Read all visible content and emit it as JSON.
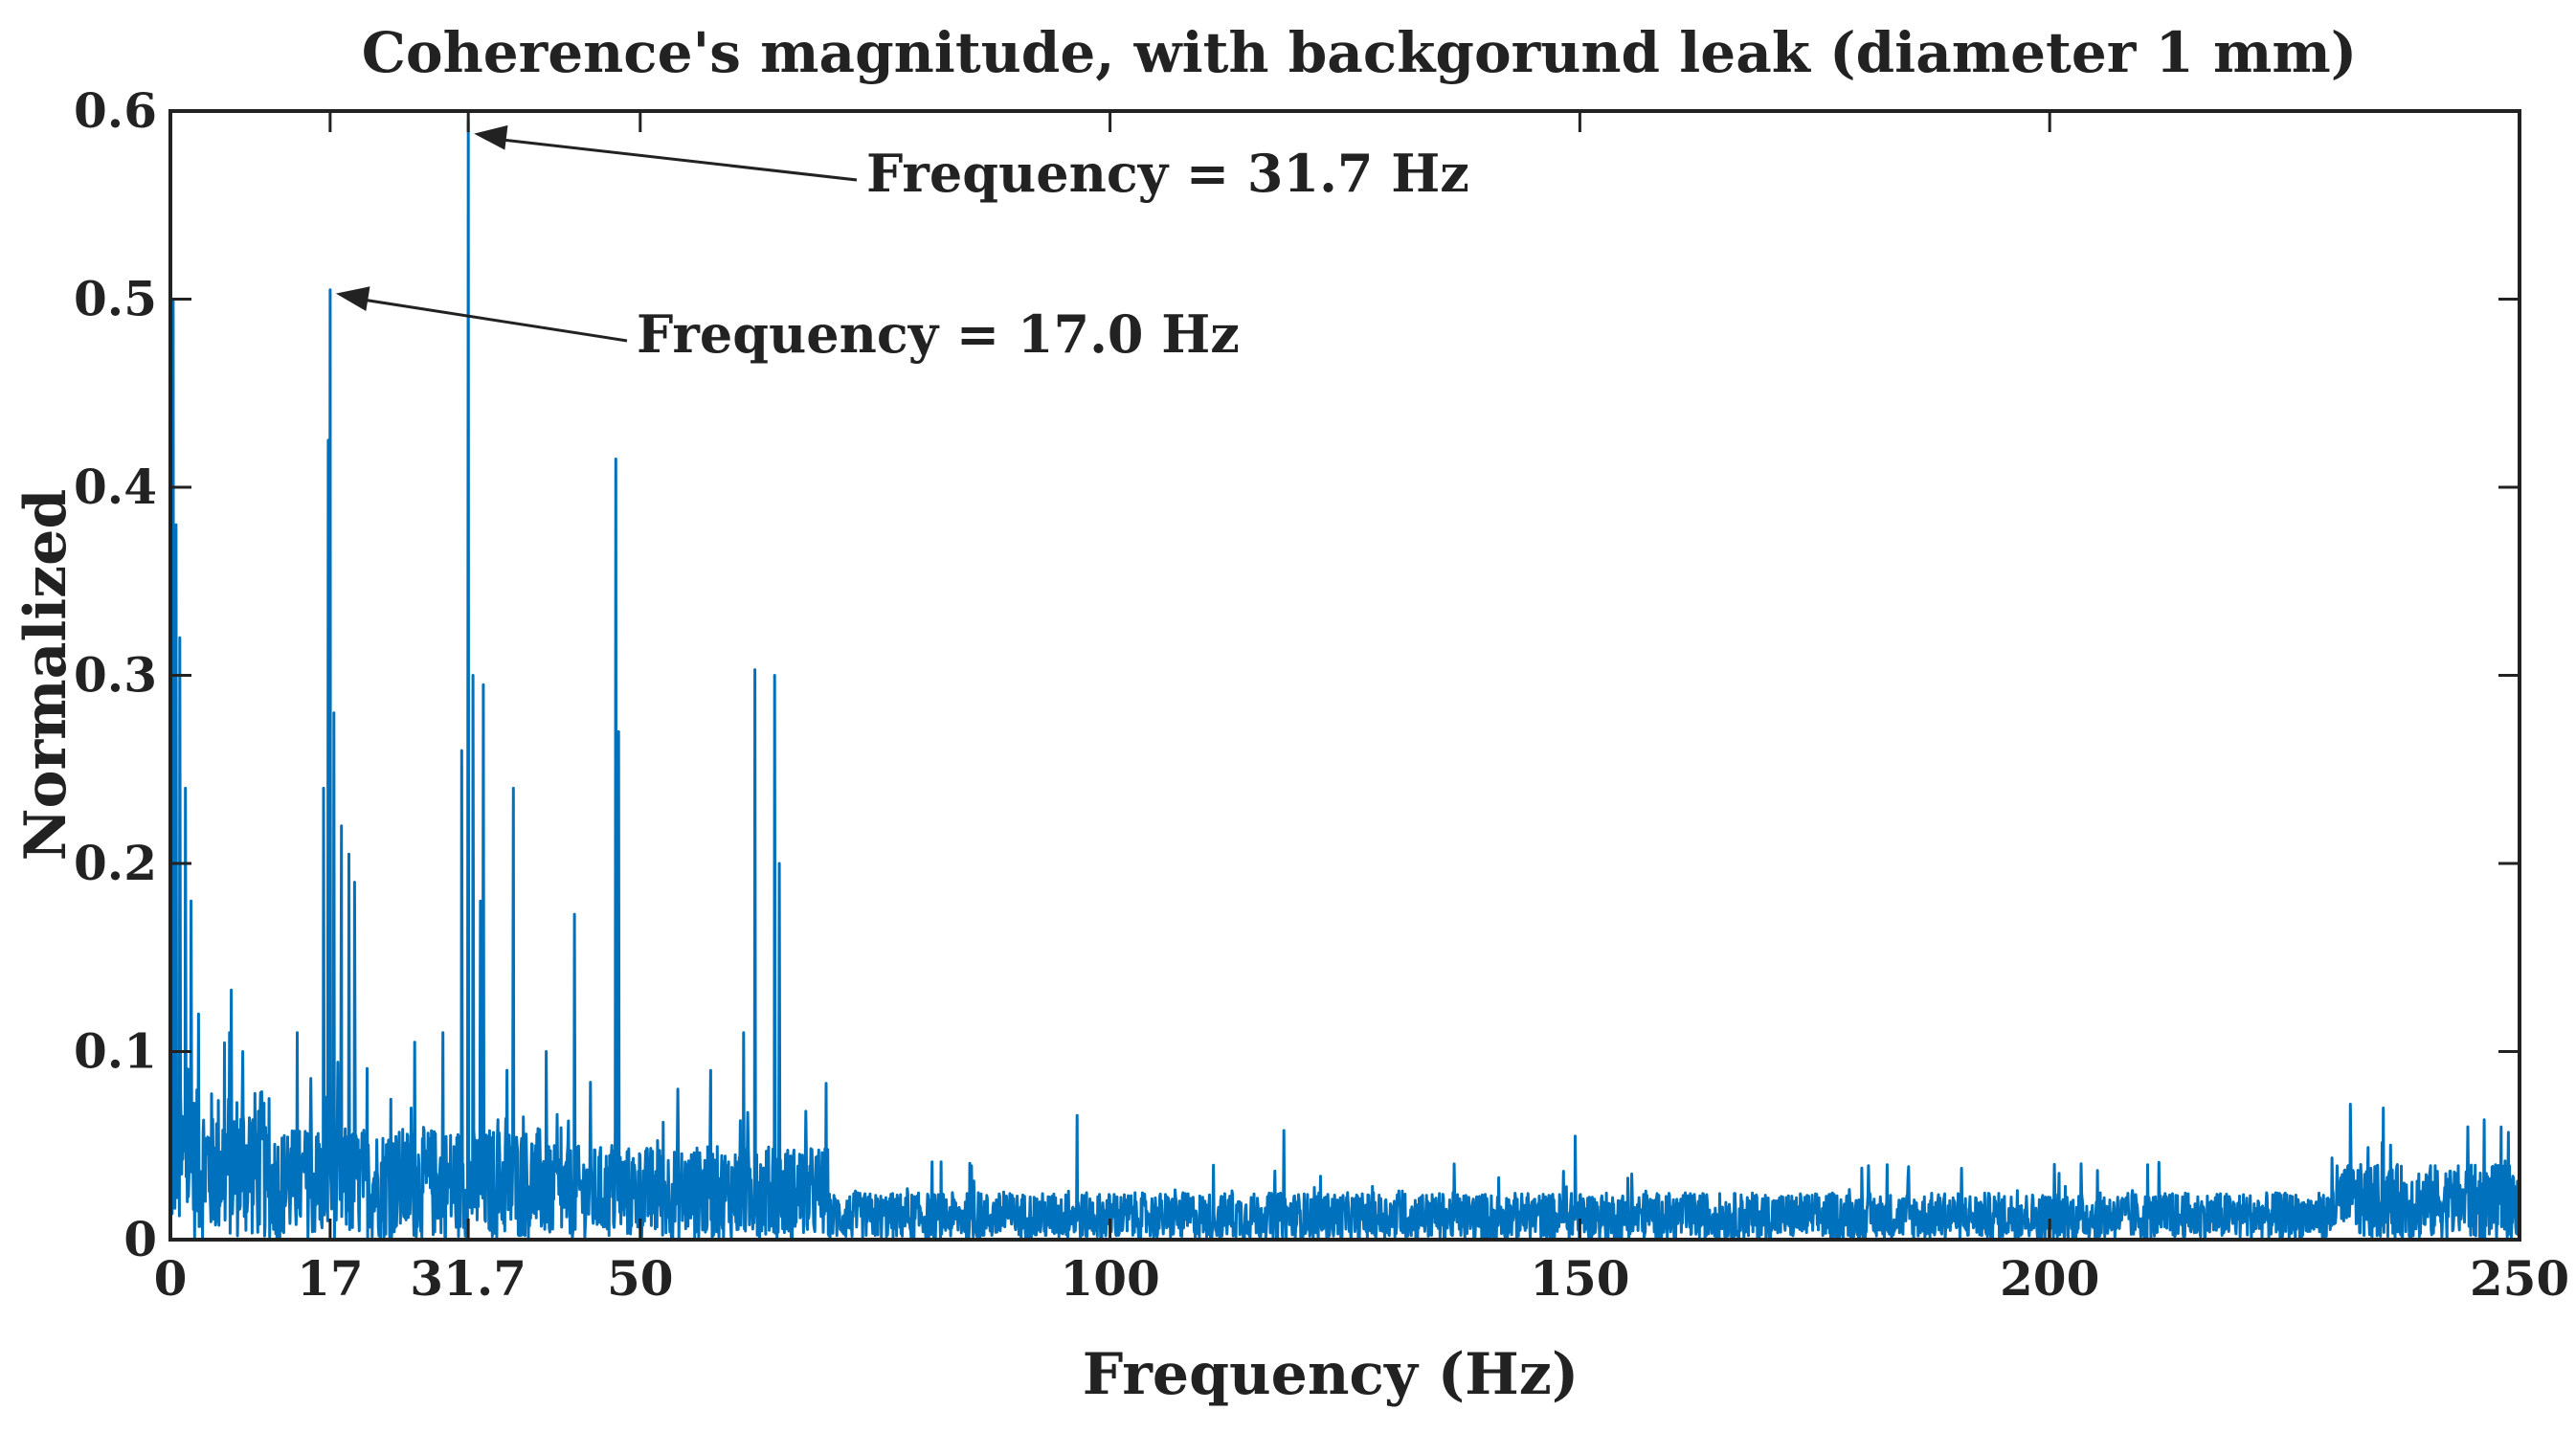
{
  "chart_data": {
    "type": "line",
    "title": "Coherence's magnitude, with backgorund leak (diameter 1 mm)",
    "xlabel": "Frequency (Hz)",
    "ylabel": "Normalized",
    "xlim": [
      0,
      250
    ],
    "ylim": [
      0,
      0.6
    ],
    "xticks": [
      0,
      17,
      31.7,
      50,
      100,
      150,
      200,
      250
    ],
    "xtick_labels": [
      "0",
      "17",
      "31.7",
      "50",
      "100",
      "150",
      "200",
      "250"
    ],
    "yticks": [
      0,
      0.1,
      0.2,
      0.3,
      0.4,
      0.5,
      0.6
    ],
    "ytick_labels": [
      "0",
      "0.1",
      "0.2",
      "0.3",
      "0.4",
      "0.5",
      "0.6"
    ],
    "grid": false,
    "legend": "none",
    "series_color": "#0072BD",
    "peaks": [
      {
        "x": 0.3,
        "y": 0.5
      },
      {
        "x": 0.6,
        "y": 0.38
      },
      {
        "x": 1.0,
        "y": 0.32
      },
      {
        "x": 1.6,
        "y": 0.24
      },
      {
        "x": 2.2,
        "y": 0.18
      },
      {
        "x": 3.0,
        "y": 0.12
      },
      {
        "x": 6.3,
        "y": 0.11
      },
      {
        "x": 7.7,
        "y": 0.1
      },
      {
        "x": 10.5,
        "y": 0.075
      },
      {
        "x": 13.5,
        "y": 0.11
      },
      {
        "x": 16.3,
        "y": 0.24
      },
      {
        "x": 16.8,
        "y": 0.425
      },
      {
        "x": 17.0,
        "y": 0.505
      },
      {
        "x": 17.4,
        "y": 0.28
      },
      {
        "x": 18.2,
        "y": 0.22
      },
      {
        "x": 19.0,
        "y": 0.205
      },
      {
        "x": 19.6,
        "y": 0.19
      },
      {
        "x": 26.0,
        "y": 0.105
      },
      {
        "x": 29.0,
        "y": 0.11
      },
      {
        "x": 31.0,
        "y": 0.26
      },
      {
        "x": 31.7,
        "y": 0.595
      },
      {
        "x": 32.2,
        "y": 0.3
      },
      {
        "x": 33.0,
        "y": 0.18
      },
      {
        "x": 33.3,
        "y": 0.295
      },
      {
        "x": 36.5,
        "y": 0.24
      },
      {
        "x": 40.0,
        "y": 0.1
      },
      {
        "x": 43.0,
        "y": 0.173
      },
      {
        "x": 47.4,
        "y": 0.415
      },
      {
        "x": 47.7,
        "y": 0.27
      },
      {
        "x": 54.0,
        "y": 0.08
      },
      {
        "x": 57.5,
        "y": 0.09
      },
      {
        "x": 61.0,
        "y": 0.11
      },
      {
        "x": 62.2,
        "y": 0.303
      },
      {
        "x": 64.3,
        "y": 0.3
      },
      {
        "x": 64.8,
        "y": 0.2
      },
      {
        "x": 96.5,
        "y": 0.066
      },
      {
        "x": 118.5,
        "y": 0.058
      },
      {
        "x": 149.5,
        "y": 0.055
      },
      {
        "x": 200.5,
        "y": 0.04
      },
      {
        "x": 232.0,
        "y": 0.072
      },
      {
        "x": 235.5,
        "y": 0.07
      },
      {
        "x": 244.5,
        "y": 0.06
      }
    ],
    "noise_floor": [
      {
        "x_range": [
          0,
          10
        ],
        "typical_max": 0.08
      },
      {
        "x_range": [
          10,
          40
        ],
        "typical_max": 0.06
      },
      {
        "x_range": [
          40,
          70
        ],
        "typical_max": 0.05
      },
      {
        "x_range": [
          70,
          230
        ],
        "typical_max": 0.025
      },
      {
        "x_range": [
          230,
          250
        ],
        "typical_max": 0.04
      }
    ],
    "annotations": [
      {
        "text": "Frequency = 31.7 Hz",
        "x": 31.7,
        "y": 0.59
      },
      {
        "text": "Frequency = 17.0 Hz",
        "x": 17.0,
        "y": 0.505
      }
    ]
  }
}
